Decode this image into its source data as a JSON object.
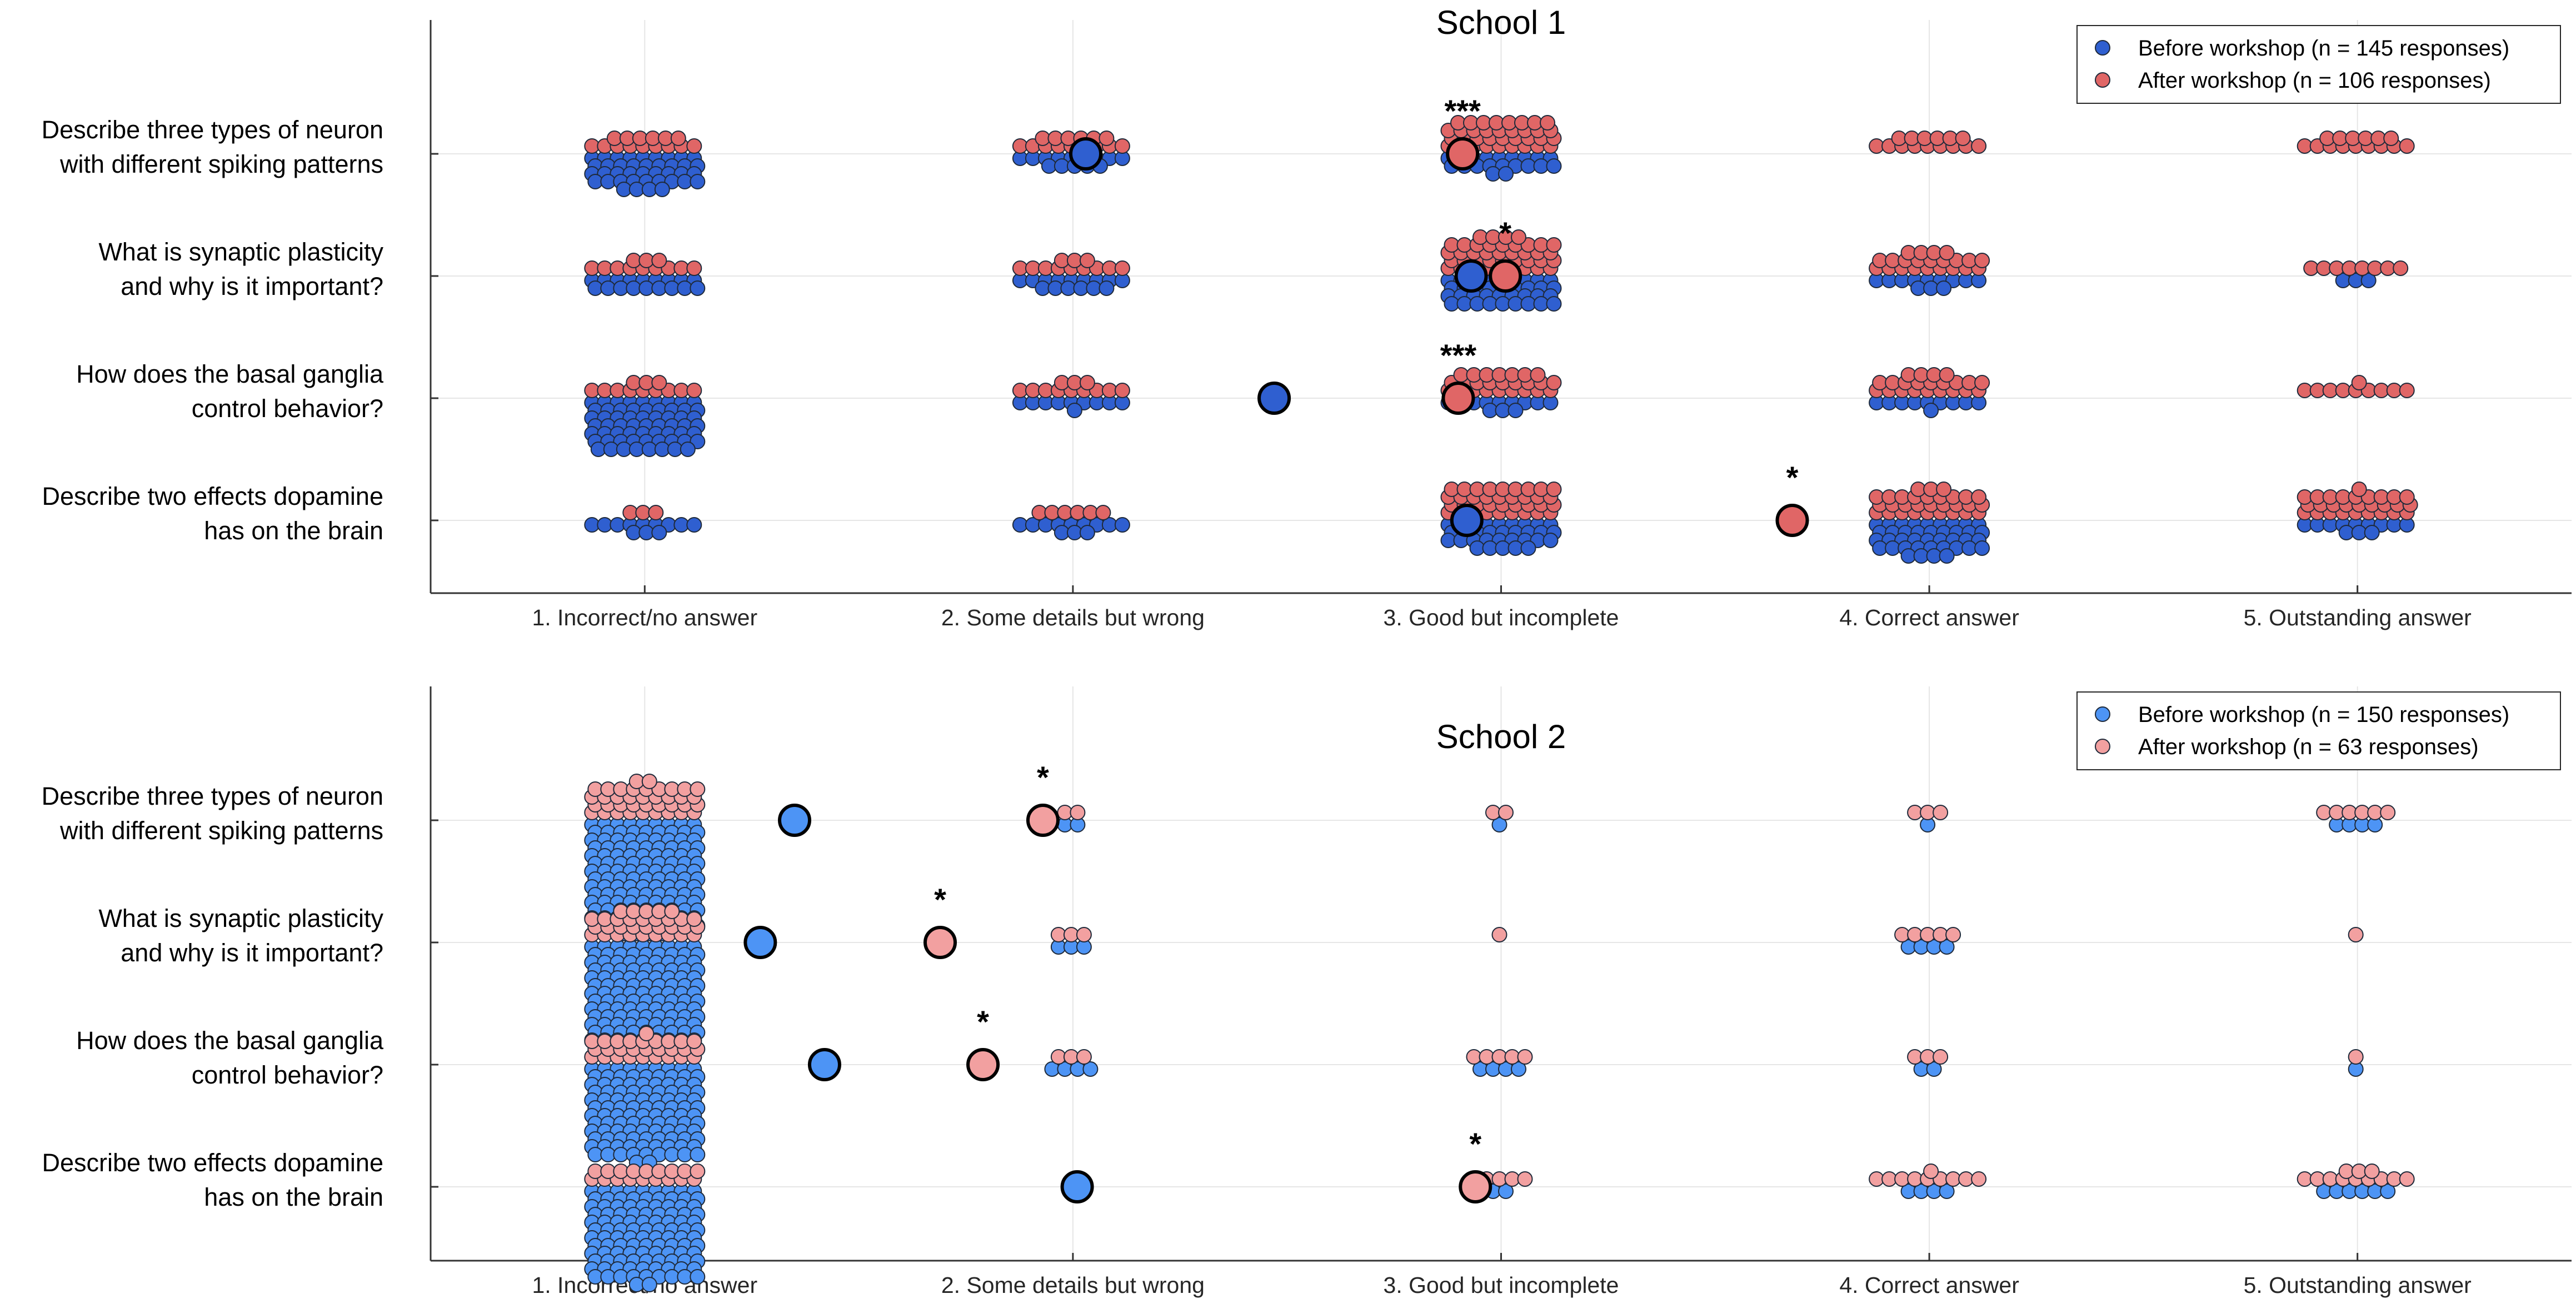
{
  "chart_data": [
    {
      "type": "scatter",
      "subtype": "beeswarm",
      "title": "School 1",
      "xlabel": "",
      "ylabel": "",
      "categories": [
        "1. Incorrect/no answer",
        "2. Some details but wrong",
        "3. Good but incomplete",
        "4. Correct answer",
        "5. Outstanding answer"
      ],
      "questions": [
        [
          "Describe three types of neuron",
          "with different spiking patterns"
        ],
        [
          "What is synaptic plasticity",
          "and why is it important?"
        ],
        [
          "How does the basal ganglia",
          "control behavior?"
        ],
        [
          "Describe two effects dopamine",
          "has on the brain"
        ]
      ],
      "xlim": [
        0.5,
        5.5
      ],
      "grid": true,
      "legend_position": "top-right",
      "series": [
        {
          "name": "Before workshop (n = 145 responses)",
          "color": "#2f5fd0",
          "counts": [
            [
              40,
              14,
              20,
              0,
              0
            ],
            [
              18,
              15,
              36,
              12,
              3
            ],
            [
              62,
              10,
              12,
              10,
              0
            ],
            [
              12,
              12,
              32,
              40,
              12
            ]
          ],
          "means": [
            2.03,
            2.93,
            2.47,
            2.92
          ]
        },
        {
          "name": "After workshop (n = 106 responses)",
          "color": "#e06666",
          "counts": [
            [
              15,
              15,
              35,
              15,
              15
            ],
            [
              12,
              12,
              40,
              22,
              8
            ],
            [
              12,
              12,
              25,
              22,
              10
            ],
            [
              3,
              6,
              36,
              30,
              28
            ]
          ],
          "means": [
            2.91,
            3.01,
            2.9,
            3.68
          ]
        }
      ],
      "significance": [
        "***",
        "*",
        "***",
        "*"
      ]
    },
    {
      "type": "scatter",
      "subtype": "beeswarm",
      "title": "School 2",
      "xlabel": "",
      "ylabel": "",
      "categories": [
        "1. Incorrect/no answer",
        "2. Some details but wrong",
        "3. Good but incomplete",
        "4. Correct answer",
        "5. Outstanding answer"
      ],
      "questions": [
        [
          "Describe three types of neuron",
          "with different spiking patterns"
        ],
        [
          "What is synaptic plasticity",
          "and why is it important?"
        ],
        [
          "How does the basal ganglia",
          "control behavior?"
        ],
        [
          "Describe two effects dopamine",
          "has on the brain"
        ]
      ],
      "xlim": [
        0.5,
        5.5
      ],
      "grid": true,
      "legend_position": "top-right",
      "series": [
        {
          "name": "Before workshop (n = 150 responses)",
          "color": "#4d94f5",
          "counts": [
            [
              130,
              2,
              1,
              1,
              4
            ],
            [
              120,
              3,
              0,
              4,
              0
            ],
            [
              110,
              4,
              4,
              2,
              1
            ],
            [
              110,
              0,
              2,
              4,
              6
            ]
          ],
          "means": [
            1.35,
            1.27,
            1.42,
            2.01
          ]
        },
        {
          "name": "After workshop (n = 63 responses)",
          "color": "#f2a0a0",
          "counts": [
            [
              38,
              2,
              2,
              3,
              6
            ],
            [
              32,
              3,
              1,
              5,
              1
            ],
            [
              28,
              3,
              5,
              3,
              1
            ],
            [
              18,
              0,
              5,
              10,
              12
            ]
          ],
          "means": [
            1.93,
            1.69,
            1.79,
            2.94
          ]
        }
      ],
      "significance": [
        "*",
        "*",
        "*",
        "*"
      ]
    }
  ]
}
